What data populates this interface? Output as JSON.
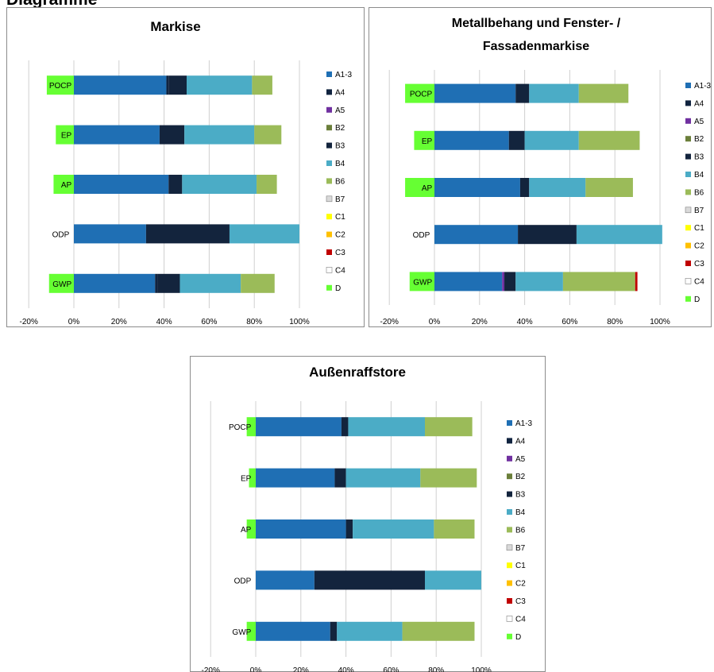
{
  "page": {
    "heading": "Diagramme"
  },
  "legend_colors": {
    "A1-3": "#1f6fb4",
    "A4": "#10233f",
    "A5": "#7030a0",
    "B2": "#6b7f3a",
    "B3": "#13243d",
    "B4": "#4bacc6",
    "B6": "#9bbb59",
    "B7": "#d9d9d9",
    "C1": "#ffff00",
    "C2": "#ffc000",
    "C3": "#c00000",
    "C4": "#ffffff",
    "D": "#66ff33"
  },
  "chart_data": [
    {
      "type": "bar",
      "orientation": "horizontal",
      "stacked": true,
      "title": "Markise",
      "categories": [
        "POCP",
        "EP",
        "AP",
        "ODP",
        "GWP"
      ],
      "highlighted_categories": [
        "POCP",
        "EP",
        "AP",
        "GWP"
      ],
      "xlim": [
        -20,
        100
      ],
      "x_ticks": [
        "-20%",
        "0%",
        "20%",
        "40%",
        "60%",
        "80%",
        "100%"
      ],
      "grid": true,
      "legend_position": "right",
      "legend": [
        "A1-3",
        "A4",
        "A5",
        "B2",
        "B3",
        "B4",
        "B6",
        "B7",
        "C1",
        "C2",
        "C3",
        "C4",
        "D"
      ],
      "series": [
        {
          "name": "D",
          "values": [
            -12,
            -8,
            -9,
            0,
            -11
          ]
        },
        {
          "name": "A1-3",
          "values": [
            41,
            38,
            42,
            32,
            36
          ]
        },
        {
          "name": "A4",
          "values": [
            1,
            0,
            0,
            0,
            1
          ]
        },
        {
          "name": "A5",
          "values": [
            0,
            0,
            0,
            0,
            0
          ]
        },
        {
          "name": "B2",
          "values": [
            0,
            0,
            0,
            0,
            0
          ]
        },
        {
          "name": "B3",
          "values": [
            8,
            11,
            6,
            37,
            10
          ]
        },
        {
          "name": "B4",
          "values": [
            29,
            31,
            33,
            31,
            27
          ]
        },
        {
          "name": "B6",
          "values": [
            9,
            12,
            9,
            0,
            15
          ]
        },
        {
          "name": "B7",
          "values": [
            0,
            0,
            0,
            0,
            0
          ]
        },
        {
          "name": "C1",
          "values": [
            0,
            0,
            0,
            0,
            0
          ]
        },
        {
          "name": "C2",
          "values": [
            0,
            0,
            0,
            0,
            0
          ]
        },
        {
          "name": "C3",
          "values": [
            0,
            0,
            0,
            0,
            0
          ]
        },
        {
          "name": "C4",
          "values": [
            0,
            0,
            0,
            0,
            0
          ]
        }
      ]
    },
    {
      "type": "bar",
      "orientation": "horizontal",
      "stacked": true,
      "title": "Metallbehang und Fenster- / Fassadenmarkise",
      "title_lines": [
        "Metallbehang und Fenster- /",
        "Fassadenmarkise"
      ],
      "categories": [
        "POCP",
        "EP",
        "AP",
        "ODP",
        "GWP"
      ],
      "highlighted_categories": [
        "POCP",
        "EP",
        "AP",
        "GWP"
      ],
      "xlim": [
        -20,
        100
      ],
      "x_ticks": [
        "-20%",
        "0%",
        "20%",
        "40%",
        "60%",
        "80%",
        "100%"
      ],
      "grid": true,
      "legend_position": "right",
      "legend": [
        "A1-3",
        "A4",
        "A5",
        "B2",
        "B3",
        "B4",
        "B6",
        "B7",
        "C1",
        "C2",
        "C3",
        "C4",
        "D"
      ],
      "series": [
        {
          "name": "D",
          "values": [
            -13,
            -9,
            -13,
            0,
            -11
          ]
        },
        {
          "name": "A1-3",
          "values": [
            36,
            33,
            38,
            37,
            30
          ]
        },
        {
          "name": "A4",
          "values": [
            0,
            0,
            0,
            0,
            0
          ]
        },
        {
          "name": "A5",
          "values": [
            0,
            0,
            0,
            0,
            1
          ]
        },
        {
          "name": "B2",
          "values": [
            0,
            0,
            0,
            0,
            0
          ]
        },
        {
          "name": "B3",
          "values": [
            6,
            7,
            4,
            26,
            5
          ]
        },
        {
          "name": "B4",
          "values": [
            22,
            24,
            25,
            38,
            21
          ]
        },
        {
          "name": "B6",
          "values": [
            22,
            27,
            21,
            0,
            32
          ]
        },
        {
          "name": "B7",
          "values": [
            0,
            0,
            0,
            0,
            0
          ]
        },
        {
          "name": "C1",
          "values": [
            0,
            0,
            0,
            0,
            0
          ]
        },
        {
          "name": "C2",
          "values": [
            0,
            0,
            0,
            0,
            0
          ]
        },
        {
          "name": "C3",
          "values": [
            0,
            0,
            0,
            0,
            1
          ]
        },
        {
          "name": "C4",
          "values": [
            0,
            0,
            0,
            0,
            0
          ]
        }
      ]
    },
    {
      "type": "bar",
      "orientation": "horizontal",
      "stacked": true,
      "title": "Außenraffstore",
      "categories": [
        "POCP",
        "EP",
        "AP",
        "ODP",
        "GWP"
      ],
      "highlighted_categories": [],
      "xlim": [
        -20,
        100
      ],
      "x_ticks": [
        "-20%",
        "0%",
        "20%",
        "40%",
        "60%",
        "80%",
        "100%"
      ],
      "grid": true,
      "legend_position": "right",
      "legend": [
        "A1-3",
        "A4",
        "A5",
        "B2",
        "B3",
        "B4",
        "B6",
        "B7",
        "C1",
        "C2",
        "C3",
        "C4",
        "D"
      ],
      "series": [
        {
          "name": "D",
          "values": [
            -4,
            -3,
            -4,
            0,
            -4
          ]
        },
        {
          "name": "A1-3",
          "values": [
            38,
            35,
            40,
            26,
            33
          ]
        },
        {
          "name": "A4",
          "values": [
            0,
            0,
            0,
            0,
            0
          ]
        },
        {
          "name": "A5",
          "values": [
            0,
            0,
            0,
            0,
            0
          ]
        },
        {
          "name": "B2",
          "values": [
            0,
            0,
            0,
            0,
            0
          ]
        },
        {
          "name": "B3",
          "values": [
            3,
            5,
            3,
            49,
            3
          ]
        },
        {
          "name": "B4",
          "values": [
            34,
            33,
            36,
            25,
            29
          ]
        },
        {
          "name": "B6",
          "values": [
            21,
            25,
            18,
            0,
            32
          ]
        },
        {
          "name": "B7",
          "values": [
            0,
            0,
            0,
            0,
            0
          ]
        },
        {
          "name": "C1",
          "values": [
            0,
            0,
            0,
            0,
            0
          ]
        },
        {
          "name": "C2",
          "values": [
            0,
            0,
            0,
            0,
            0
          ]
        },
        {
          "name": "C3",
          "values": [
            0,
            0,
            0,
            0,
            0
          ]
        },
        {
          "name": "C4",
          "values": [
            0,
            0,
            0,
            0,
            0
          ]
        }
      ]
    }
  ]
}
